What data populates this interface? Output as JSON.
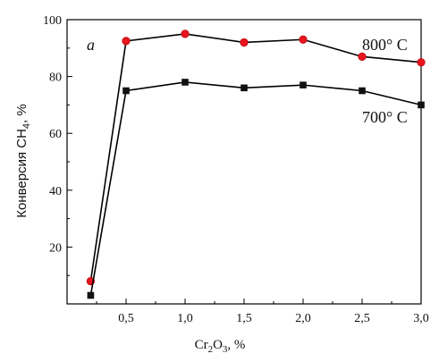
{
  "chart_data": {
    "type": "line",
    "panel_label": "a",
    "xlabel_parts": {
      "main": "Cr",
      "sub1": "2",
      "mid": "O",
      "sub2": "3",
      "tail": ", %"
    },
    "ylabel_parts": {
      "main": "Конверсия CH",
      "sub": "4",
      "tail": ", %"
    },
    "xlim": [
      0.0,
      3.0
    ],
    "ylim": [
      0,
      100
    ],
    "x_ticks": [
      0.5,
      1.0,
      1.5,
      2.0,
      2.5,
      3.0
    ],
    "x_tick_labels": [
      "0,5",
      "1,0",
      "1,5",
      "2,0",
      "2,5",
      "3,0"
    ],
    "y_ticks": [
      20,
      40,
      60,
      80,
      100
    ],
    "y_tick_labels": [
      "20",
      "40",
      "60",
      "80",
      "100"
    ],
    "grid": false,
    "series": [
      {
        "name": "800° C",
        "marker": "circle",
        "marker_color": "#e8141e",
        "line_color": "#000000",
        "x": [
          0.2,
          0.5,
          1.0,
          1.5,
          2.0,
          2.5,
          3.0
        ],
        "y": [
          8,
          92.5,
          95,
          92,
          93,
          87,
          85
        ]
      },
      {
        "name": "700° C",
        "marker": "square",
        "marker_color": "#111111",
        "line_color": "#000000",
        "x": [
          0.2,
          0.5,
          1.0,
          1.5,
          2.0,
          2.5,
          3.0
        ],
        "y": [
          3,
          75,
          78,
          76,
          77,
          75,
          70
        ]
      }
    ]
  }
}
